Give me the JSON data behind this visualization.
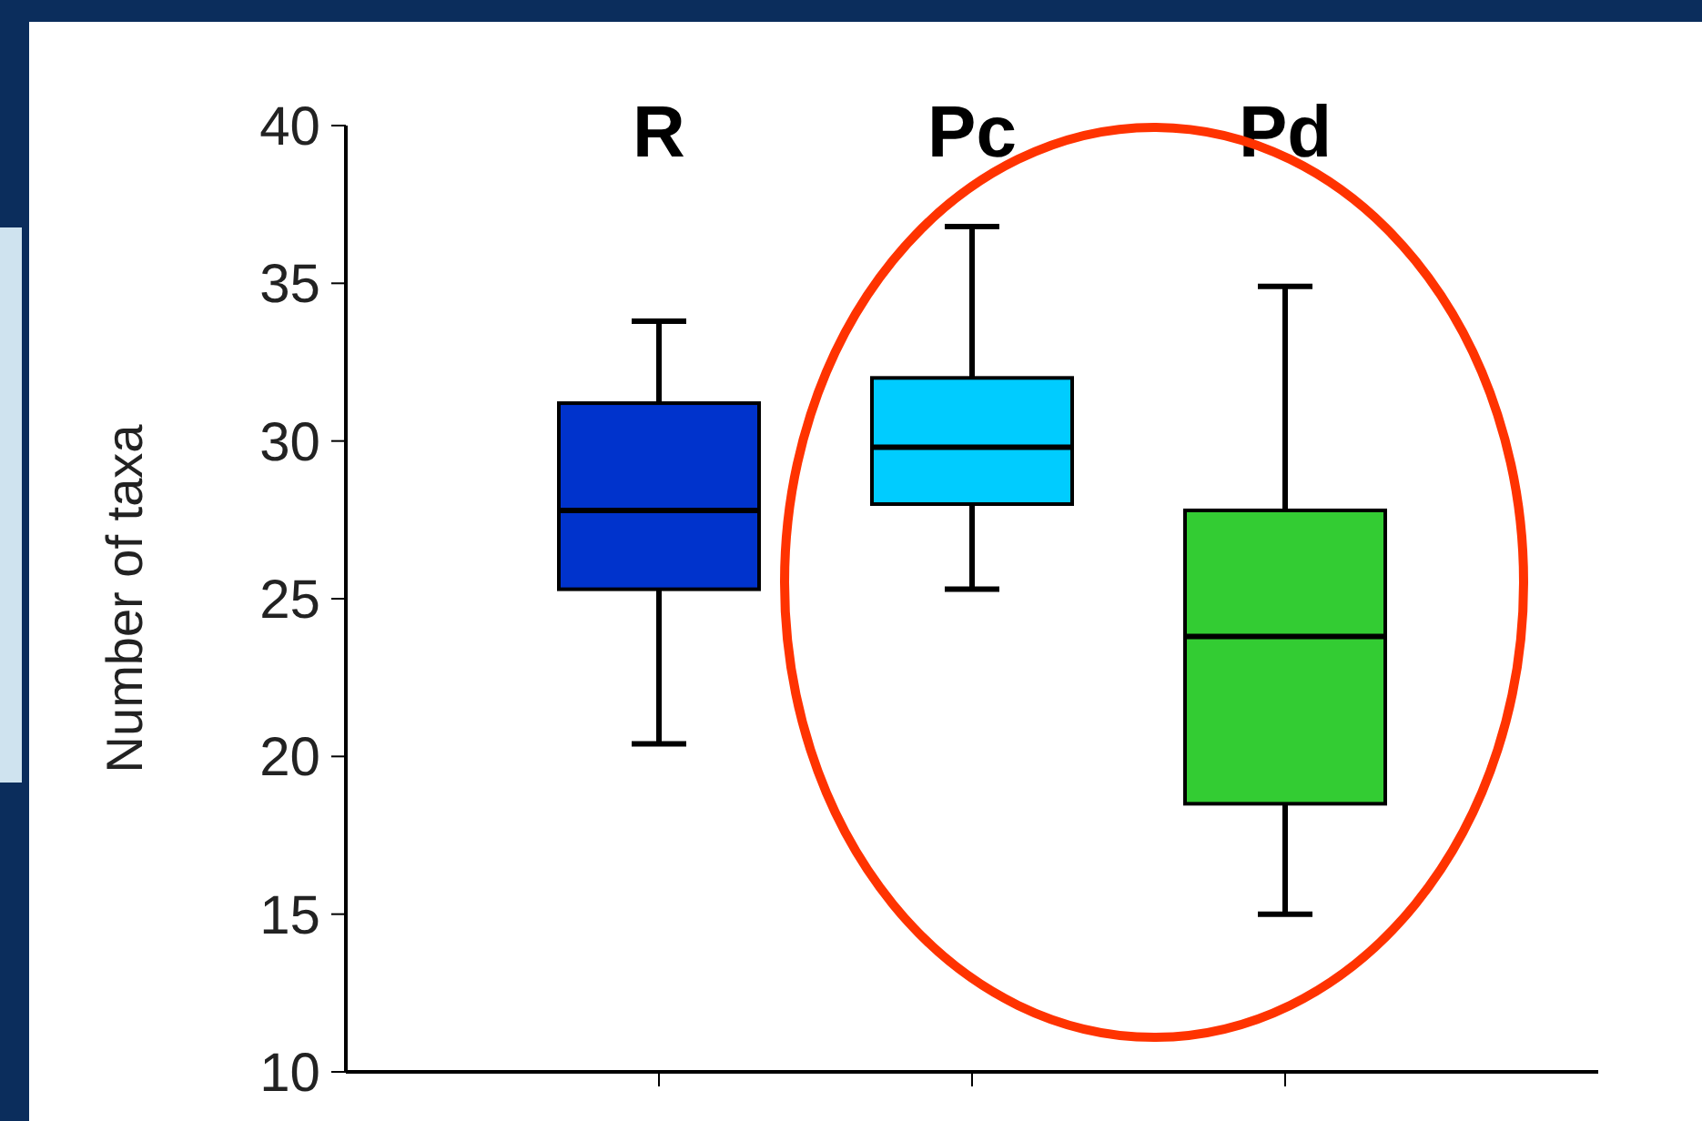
{
  "chart_data": {
    "type": "box",
    "ylabel": "Number of taxa",
    "categories": [
      "R",
      "Pc",
      "Pd"
    ],
    "colors": [
      "#0033cc",
      "#00ccff",
      "#33cc33"
    ],
    "boxes": [
      {
        "low": 20.4,
        "q1": 25.3,
        "median": 27.8,
        "q3": 31.2,
        "high": 33.8
      },
      {
        "low": 25.3,
        "q1": 28.0,
        "median": 29.8,
        "q3": 32.0,
        "high": 36.8
      },
      {
        "low": 15.0,
        "q1": 18.5,
        "median": 23.8,
        "q3": 27.8,
        "high": 34.9
      }
    ],
    "ylim": [
      10,
      40
    ],
    "yticks": [
      10,
      15,
      20,
      25,
      30,
      35,
      40
    ],
    "grid": false
  }
}
